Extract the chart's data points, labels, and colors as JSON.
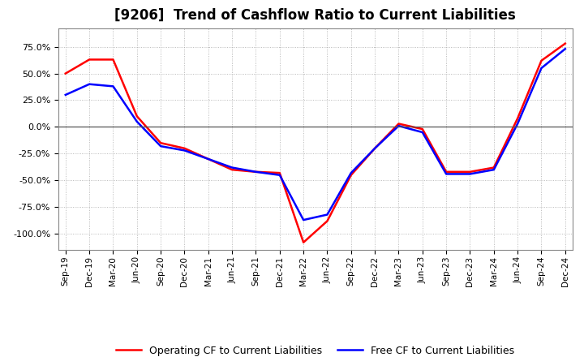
{
  "title": "[9206]  Trend of Cashflow Ratio to Current Liabilities",
  "x_labels": [
    "Sep-19",
    "Dec-19",
    "Mar-20",
    "Jun-20",
    "Sep-20",
    "Dec-20",
    "Mar-21",
    "Jun-21",
    "Sep-21",
    "Dec-21",
    "Mar-22",
    "Jun-22",
    "Sep-22",
    "Dec-22",
    "Mar-23",
    "Jun-23",
    "Sep-23",
    "Dec-23",
    "Mar-24",
    "Jun-24",
    "Sep-24",
    "Dec-24"
  ],
  "operating_cf": [
    0.5,
    0.63,
    0.63,
    0.1,
    -0.15,
    -0.2,
    -0.3,
    -0.4,
    -0.42,
    -0.43,
    -1.08,
    -0.88,
    -0.45,
    -0.2,
    0.03,
    -0.02,
    -0.42,
    -0.42,
    -0.38,
    0.08,
    0.62,
    0.78
  ],
  "free_cf": [
    0.3,
    0.4,
    0.38,
    0.05,
    -0.18,
    -0.22,
    -0.3,
    -0.38,
    -0.42,
    -0.45,
    -0.87,
    -0.82,
    -0.43,
    -0.2,
    0.01,
    -0.05,
    -0.44,
    -0.44,
    -0.4,
    0.03,
    0.55,
    0.73
  ],
  "operating_color": "#ff0000",
  "free_color": "#0000ff",
  "ylim": [
    -1.15,
    0.92
  ],
  "yticks": [
    0.75,
    0.5,
    0.25,
    0.0,
    -0.25,
    -0.5,
    -0.75,
    -1.0
  ],
  "grid_color": "#aaaaaa",
  "bg_color": "#ffffff",
  "plot_bg_color": "#ffffff",
  "legend_op": "Operating CF to Current Liabilities",
  "legend_free": "Free CF to Current Liabilities",
  "linewidth": 1.8,
  "title_fontsize": 12
}
